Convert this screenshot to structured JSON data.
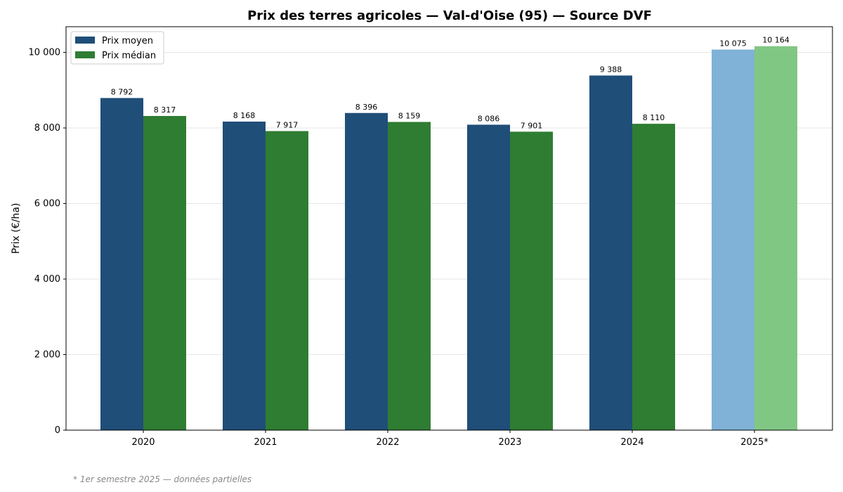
{
  "chart_data": {
    "type": "bar",
    "title": "Prix des terres agricoles — Val-d'Oise (95) — Source DVF",
    "xlabel": "",
    "ylabel": "Prix (€/ha)",
    "categories": [
      "2020",
      "2021",
      "2022",
      "2023",
      "2024",
      "2025*"
    ],
    "series": [
      {
        "name": "Prix moyen",
        "values": [
          8792,
          8168,
          8396,
          8086,
          9388,
          10075
        ],
        "labels": [
          "8 792",
          "8 168",
          "8 396",
          "8 086",
          "9 388",
          "10 075"
        ],
        "color": "#1f4e79",
        "partial_color": "#7fb2d6"
      },
      {
        "name": "Prix médian",
        "values": [
          8317,
          7917,
          8159,
          7901,
          8110,
          10164
        ],
        "labels": [
          "8 317",
          "7 917",
          "8 159",
          "7 901",
          "8 110",
          "10 164"
        ],
        "color": "#2e7d32",
        "partial_color": "#81c784"
      }
    ],
    "ylim": [
      0,
      10680
    ],
    "yticks": [
      0,
      2000,
      4000,
      6000,
      8000,
      10000
    ],
    "ytick_labels": [
      "0",
      "2 000",
      "4 000",
      "6 000",
      "8 000",
      "10 000"
    ],
    "grid": "horizontal",
    "legend": "top-right",
    "footnote": "* 1er semestre 2025 — données partielles"
  }
}
